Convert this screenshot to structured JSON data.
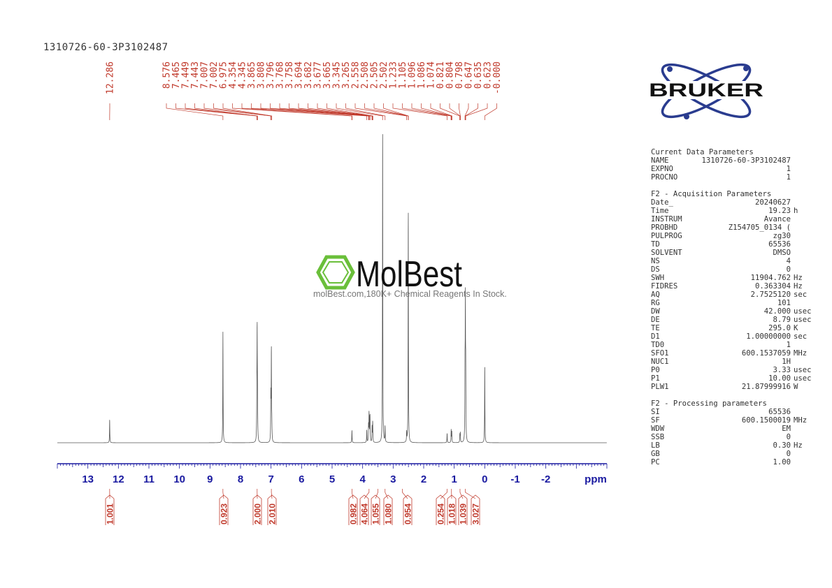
{
  "sample_id": "1310726-60-3P3102487",
  "watermark": {
    "brand": "MolBest",
    "tagline": "molBest.com,180K+ Chemical Reagents In Stock."
  },
  "logo_text": "BRUKER",
  "params": {
    "current_title": "Current Data Parameters",
    "current": [
      {
        "k": "NAME",
        "v": "1310726-60-3P3102487",
        "u": ""
      },
      {
        "k": "EXPNO",
        "v": "1",
        "u": ""
      },
      {
        "k": "PROCNO",
        "v": "1",
        "u": ""
      }
    ],
    "acq_title": "F2 - Acquisition Parameters",
    "acq": [
      {
        "k": "Date_",
        "v": "20240627",
        "u": ""
      },
      {
        "k": "Time",
        "v": "19.23",
        "u": "h"
      },
      {
        "k": "INSTRUM",
        "v": "Avance",
        "u": ""
      },
      {
        "k": "PROBHD",
        "v": "Z154705_0134 (",
        "u": ""
      },
      {
        "k": "PULPROG",
        "v": "zg30",
        "u": ""
      },
      {
        "k": "TD",
        "v": "65536",
        "u": ""
      },
      {
        "k": "SOLVENT",
        "v": "DMSO",
        "u": ""
      },
      {
        "k": "NS",
        "v": "4",
        "u": ""
      },
      {
        "k": "DS",
        "v": "0",
        "u": ""
      },
      {
        "k": "SWH",
        "v": "11904.762",
        "u": "Hz"
      },
      {
        "k": "FIDRES",
        "v": "0.363304",
        "u": "Hz"
      },
      {
        "k": "AQ",
        "v": "2.7525120",
        "u": "sec"
      },
      {
        "k": "RG",
        "v": "101",
        "u": ""
      },
      {
        "k": "DW",
        "v": "42.000",
        "u": "usec"
      },
      {
        "k": "DE",
        "v": "8.79",
        "u": "usec"
      },
      {
        "k": "TE",
        "v": "295.0",
        "u": "K"
      },
      {
        "k": "D1",
        "v": "1.00000000",
        "u": "sec"
      },
      {
        "k": "TD0",
        "v": "1",
        "u": ""
      },
      {
        "k": "SFO1",
        "v": "600.1537059",
        "u": "MHz"
      },
      {
        "k": "NUC1",
        "v": "1H",
        "u": ""
      },
      {
        "k": "P0",
        "v": "3.33",
        "u": "usec"
      },
      {
        "k": "P1",
        "v": "10.00",
        "u": "usec"
      },
      {
        "k": "PLW1",
        "v": "21.87999916",
        "u": "W"
      }
    ],
    "proc_title": "F2 - Processing parameters",
    "proc": [
      {
        "k": "SI",
        "v": "65536",
        "u": ""
      },
      {
        "k": "SF",
        "v": "600.1500019",
        "u": "MHz"
      },
      {
        "k": "WDW",
        "v": "EM",
        "u": ""
      },
      {
        "k": "SSB",
        "v": "0",
        "u": ""
      },
      {
        "k": "LB",
        "v": "0.30",
        "u": "Hz"
      },
      {
        "k": "GB",
        "v": "0",
        "u": ""
      },
      {
        "k": "PC",
        "v": "1.00",
        "u": ""
      }
    ]
  },
  "chart_data": {
    "type": "line",
    "title": "",
    "xlabel": "ppm",
    "ylabel": "",
    "xlim": [
      14.0,
      -4.0
    ],
    "x_reversed": true,
    "grid": false,
    "x_ticks": [
      13,
      12,
      11,
      10,
      9,
      8,
      7,
      6,
      5,
      4,
      3,
      2,
      1,
      0,
      -1,
      -2
    ],
    "x_tick_labels": [
      "13",
      "12",
      "11",
      "10",
      "9",
      "8",
      "7",
      "6",
      "5",
      "4",
      "3",
      "2",
      "1",
      "0",
      "-1",
      "-2"
    ],
    "peak_labels": [
      "12.286",
      "8.576",
      "7.465",
      "7.449",
      "7.443",
      "7.007",
      "7.002",
      "6.975",
      "4.354",
      "4.345",
      "3.865",
      "3.808",
      "3.796",
      "3.768",
      "3.758",
      "3.694",
      "3.682",
      "3.677",
      "3.665",
      "3.345",
      "3.265",
      "2.558",
      "2.508",
      "2.505",
      "2.502",
      "1.233",
      "1.105",
      "1.096",
      "1.086",
      "1.074",
      "0.821",
      "0.804",
      "0.798",
      "0.647",
      "0.635",
      "0.623",
      "-0.000"
    ],
    "peaks": [
      {
        "ppm": 12.286,
        "h": 0.074
      },
      {
        "ppm": 8.576,
        "h": 0.35
      },
      {
        "ppm": 7.465,
        "h": 0.13
      },
      {
        "ppm": 7.455,
        "h": 0.33
      },
      {
        "ppm": 7.443,
        "h": 0.13
      },
      {
        "ppm": 7.007,
        "h": 0.14
      },
      {
        "ppm": 6.99,
        "h": 0.29
      },
      {
        "ppm": 6.975,
        "h": 0.05
      },
      {
        "ppm": 4.35,
        "h": 0.04
      },
      {
        "ppm": 3.865,
        "h": 0.04
      },
      {
        "ppm": 3.808,
        "h": 0.055
      },
      {
        "ppm": 3.79,
        "h": 0.09
      },
      {
        "ppm": 3.768,
        "h": 0.06
      },
      {
        "ppm": 3.758,
        "h": 0.07
      },
      {
        "ppm": 3.69,
        "h": 0.05
      },
      {
        "ppm": 3.67,
        "h": 0.065
      },
      {
        "ppm": 3.345,
        "h": 1.0
      },
      {
        "ppm": 3.265,
        "h": 0.05
      },
      {
        "ppm": 2.558,
        "h": 0.03
      },
      {
        "ppm": 2.505,
        "h": 0.745
      },
      {
        "ppm": 1.233,
        "h": 0.03
      },
      {
        "ppm": 1.1,
        "h": 0.04
      },
      {
        "ppm": 1.08,
        "h": 0.035
      },
      {
        "ppm": 0.815,
        "h": 0.025
      },
      {
        "ppm": 0.8,
        "h": 0.03
      },
      {
        "ppm": 0.647,
        "h": 0.2
      },
      {
        "ppm": 0.635,
        "h": 0.41
      },
      {
        "ppm": 0.623,
        "h": 0.2
      },
      {
        "ppm": 0.0,
        "h": 0.245
      }
    ],
    "integrals": [
      {
        "ppm": 12.286,
        "value": "1.001"
      },
      {
        "ppm": 8.576,
        "value": "0.923"
      },
      {
        "ppm": 7.455,
        "value": "2.000"
      },
      {
        "ppm": 6.99,
        "value": "2.010"
      },
      {
        "ppm": 4.35,
        "value": "0.982"
      },
      {
        "ppm": 3.79,
        "value": "4.064"
      },
      {
        "ppm": 3.5,
        "value": "1.055"
      },
      {
        "ppm": 3.265,
        "value": "1.080"
      },
      {
        "ppm": 2.7,
        "value": "0.954"
      },
      {
        "ppm": 1.233,
        "value": "0.254"
      },
      {
        "ppm": 1.09,
        "value": "1.018"
      },
      {
        "ppm": 0.81,
        "value": "1.039"
      },
      {
        "ppm": 0.635,
        "value": "3.027"
      }
    ]
  }
}
